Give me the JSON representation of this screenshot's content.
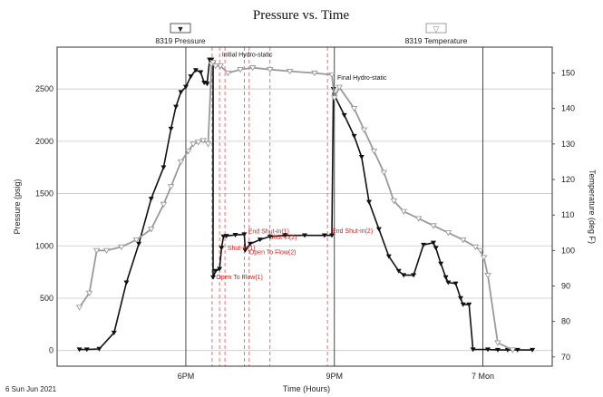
{
  "chart_data": {
    "type": "line",
    "title": "Pressure vs. Time",
    "xlabel": "Time (Hours)",
    "ylabel": "Pressure (psig)",
    "y2label": "Temperature (deg F)",
    "start_label": "6 Sun Jun 2021",
    "x_ticks": [
      {
        "t": 17.9,
        "label": "6PM"
      },
      {
        "t": 20.9,
        "label": "9PM"
      },
      {
        "t": 23.9,
        "label": "7 Mon"
      }
    ],
    "xlim": [
      15.3,
      25.3
    ],
    "ylim": [
      -150,
      2900
    ],
    "y_ticks": [
      0,
      500,
      1000,
      1500,
      2000,
      2500
    ],
    "y2lim": [
      67.4,
      157.3
    ],
    "y2_ticks": [
      70,
      80,
      90,
      100,
      110,
      120,
      130,
      140,
      150
    ],
    "grid": true,
    "legend": [
      {
        "label": "8319 Pressure",
        "marker": "▼"
      },
      {
        "label": "8319 Temperature",
        "marker": "▽"
      }
    ],
    "vertical_lines_solid": [
      17.9,
      20.9,
      23.9
    ],
    "vertical_lines_dashed": [
      18.43,
      18.58,
      18.69,
      19.08,
      19.18,
      19.6,
      20.76
    ],
    "event_labels": [
      {
        "text": "Open To Flow(1)",
        "t": 18.51,
        "p": 680
      },
      {
        "text": "Shut-in(1)",
        "t": 18.74,
        "p": 960
      },
      {
        "text": "Open To Flow(2)",
        "t": 19.18,
        "p": 920
      },
      {
        "text": "End Shut-in(1)",
        "t": 19.16,
        "p": 1120
      },
      {
        "text": "Shut-in(2)",
        "t": 19.58,
        "p": 1065
      },
      {
        "text": "End Shut-in(2)",
        "t": 20.85,
        "p": 1125
      }
    ],
    "annotations": [
      {
        "text": "Initial Hydro-static",
        "t": 18.63,
        "p": 2810
      },
      {
        "text": "Final Hydro-static",
        "t": 20.96,
        "p": 2590
      }
    ],
    "series": [
      {
        "name": "8319 Pressure",
        "axis": "left",
        "color": "#111111",
        "x": [
          15.75,
          15.9,
          16.15,
          16.45,
          16.7,
          16.95,
          17.2,
          17.45,
          17.6,
          17.7,
          17.8,
          17.9,
          18.0,
          18.1,
          18.2,
          18.27,
          18.33,
          18.38,
          18.42,
          18.45,
          18.45,
          18.5,
          18.58,
          18.62,
          18.66,
          18.72,
          18.9,
          19.08,
          19.1,
          19.2,
          19.4,
          19.6,
          19.9,
          20.3,
          20.7,
          20.85,
          20.88,
          20.9,
          21.1,
          21.3,
          21.45,
          21.6,
          21.8,
          22.0,
          22.2,
          22.3,
          22.5,
          22.7,
          22.9,
          22.95,
          23.05,
          23.15,
          23.2,
          23.35,
          23.45,
          23.5,
          23.62,
          23.7,
          24.0,
          24.2,
          24.4,
          24.6,
          24.9
        ],
        "y": [
          10,
          10,
          15,
          170,
          650,
          1020,
          1450,
          1750,
          2120,
          2330,
          2470,
          2520,
          2620,
          2680,
          2660,
          2560,
          2550,
          2780,
          2780,
          2740,
          700,
          760,
          780,
          980,
          1090,
          1095,
          1105,
          1110,
          960,
          1020,
          1060,
          1090,
          1100,
          1100,
          1100,
          1100,
          2500,
          2440,
          2250,
          2050,
          1850,
          1420,
          1160,
          900,
          760,
          720,
          720,
          1010,
          1030,
          980,
          830,
          700,
          650,
          640,
          500,
          440,
          440,
          10,
          10,
          5,
          5,
          5,
          5
        ]
      },
      {
        "name": "8319 Temperature",
        "axis": "right",
        "color": "#9a9a9a",
        "x": [
          15.75,
          15.95,
          16.1,
          16.3,
          16.6,
          16.9,
          17.2,
          17.45,
          17.6,
          17.8,
          17.95,
          18.05,
          18.15,
          18.25,
          18.35,
          18.42,
          18.45,
          18.5,
          18.6,
          18.75,
          19.0,
          19.25,
          19.6,
          20.0,
          20.5,
          20.85,
          20.9,
          21.0,
          21.3,
          21.5,
          21.7,
          21.9,
          22.1,
          22.3,
          22.6,
          22.9,
          23.2,
          23.5,
          23.75,
          23.85,
          23.92,
          24.0,
          24.2,
          24.5
        ],
        "y": [
          84,
          88,
          100,
          100,
          101,
          103,
          106,
          113,
          118,
          125,
          128,
          130,
          130.5,
          131,
          130,
          152.5,
          153,
          152,
          152,
          150,
          151,
          151.5,
          151,
          150.5,
          150,
          149.5,
          143,
          146,
          140,
          134,
          128,
          122,
          114,
          111,
          109,
          107,
          105,
          103,
          101,
          100,
          98,
          93,
          74,
          72
        ]
      }
    ]
  }
}
